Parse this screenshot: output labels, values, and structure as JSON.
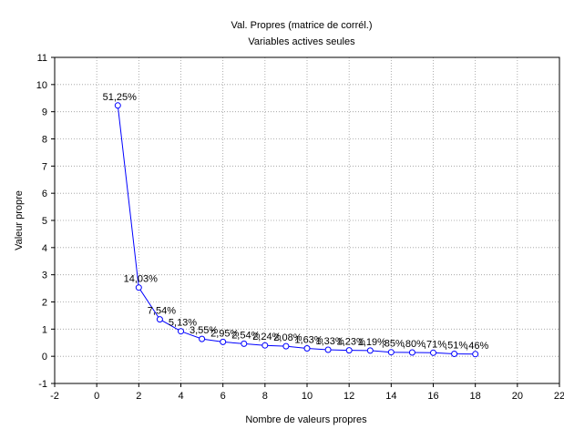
{
  "chart_data": {
    "type": "line",
    "title": "Val. Propres (matrice de corrél.)",
    "subtitle": "Variables actives seules",
    "xlabel": "Nombre de valeurs propres",
    "ylabel": "Valeur propre",
    "xlim": [
      -2,
      22
    ],
    "ylim": [
      -1,
      11
    ],
    "x_ticks": [
      "-2",
      "0",
      "2",
      "4",
      "6",
      "8",
      "10",
      "12",
      "14",
      "16",
      "18",
      "20",
      "22"
    ],
    "y_ticks": [
      "-1",
      "0",
      "1",
      "2",
      "3",
      "4",
      "5",
      "6",
      "7",
      "8",
      "9",
      "10",
      "11"
    ],
    "grid": true,
    "series_color": "#0000ff",
    "x": [
      1,
      2,
      3,
      4,
      5,
      6,
      7,
      8,
      9,
      10,
      11,
      12,
      13,
      14,
      15,
      16,
      17,
      18
    ],
    "values": [
      9.23,
      2.53,
      1.36,
      0.92,
      0.64,
      0.53,
      0.46,
      0.4,
      0.37,
      0.29,
      0.24,
      0.22,
      0.21,
      0.15,
      0.14,
      0.13,
      0.09,
      0.08
    ],
    "point_labels": [
      "51,25%",
      "14,03%",
      "7,54%",
      "5,13%",
      "3,55%",
      "2,95%",
      "2,54%",
      "2,24%",
      "2,08%",
      "1,63%",
      "1,33%",
      "1,23%",
      "1,19%",
      ",85%",
      ",80%",
      ",71%",
      ",51%",
      ",46%"
    ]
  }
}
